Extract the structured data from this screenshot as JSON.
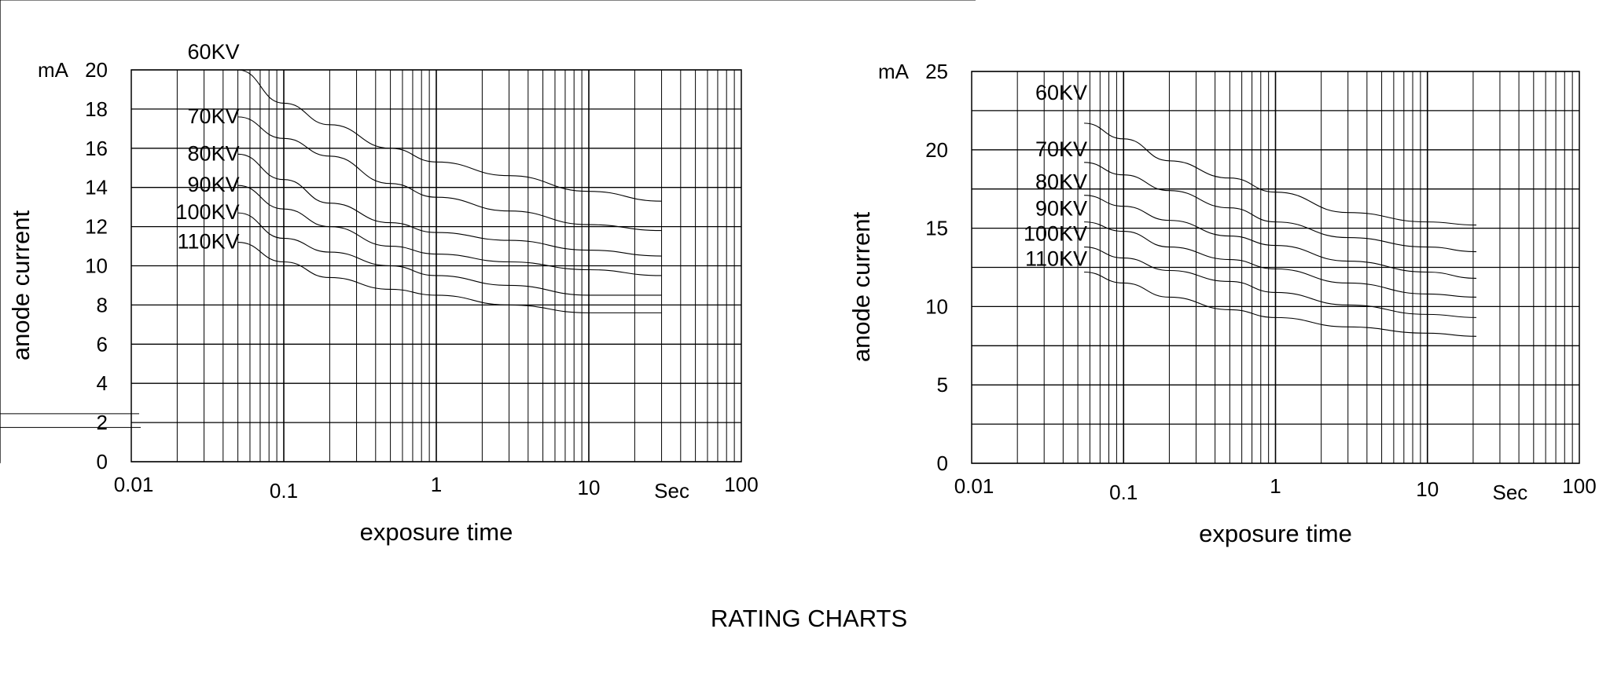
{
  "page_title": "RATING CHARTS",
  "chart_data": [
    {
      "type": "line",
      "xlabel": "exposure time",
      "ylabel": "anode current",
      "y_unit": "mA",
      "x_unit": "Sec",
      "x_scale": "log",
      "xlim": [
        0.01,
        100
      ],
      "ylim": [
        0,
        20
      ],
      "x_ticks": [
        "0.01",
        "0.1",
        "1",
        "10",
        "100"
      ],
      "y_ticks": [
        "0",
        "2",
        "4",
        "6",
        "8",
        "10",
        "12",
        "14",
        "16",
        "18",
        "20"
      ],
      "y_grid_step": 2,
      "grid": true,
      "legend_symbol": "two-parallel-lines",
      "x": [
        0.05,
        0.1,
        0.2,
        0.5,
        1,
        3,
        10,
        30
      ],
      "series": [
        {
          "name": "60KV",
          "values": [
            20.0,
            18.3,
            17.2,
            16.0,
            15.3,
            14.6,
            13.8,
            13.3
          ]
        },
        {
          "name": "70KV",
          "values": [
            17.6,
            16.5,
            15.6,
            14.2,
            13.5,
            12.8,
            12.1,
            11.8
          ]
        },
        {
          "name": "80KV",
          "values": [
            15.7,
            14.4,
            13.2,
            12.2,
            11.7,
            11.3,
            10.8,
            10.5
          ]
        },
        {
          "name": "90KV",
          "values": [
            14.1,
            12.9,
            12.0,
            11.0,
            10.6,
            10.2,
            9.8,
            9.5
          ]
        },
        {
          "name": "100KV",
          "values": [
            12.7,
            11.4,
            10.7,
            10.0,
            9.5,
            9.0,
            8.5,
            8.5
          ]
        },
        {
          "name": "110KV",
          "values": [
            11.2,
            10.2,
            9.4,
            8.8,
            8.5,
            8.0,
            7.6,
            7.6
          ]
        }
      ]
    },
    {
      "type": "line",
      "xlabel": "exposure time",
      "ylabel": "anode current",
      "y_unit": "mA",
      "x_unit": "Sec",
      "x_scale": "log",
      "xlim": [
        0.01,
        100
      ],
      "ylim": [
        0,
        25
      ],
      "x_ticks": [
        "0.01",
        "0.1",
        "1",
        "10",
        "100"
      ],
      "y_ticks": [
        "0",
        "5",
        "10",
        "15",
        "20",
        "25"
      ],
      "y_grid_step": 2.5,
      "grid": true,
      "legend_symbol": "sine-wave",
      "x": [
        0.055,
        0.1,
        0.2,
        0.5,
        1,
        3,
        10,
        21
      ],
      "series": [
        {
          "name": "60KV",
          "values": [
            21.7,
            20.7,
            19.3,
            18.2,
            17.3,
            16.0,
            15.4,
            15.2
          ]
        },
        {
          "name": "70KV",
          "values": [
            19.2,
            18.4,
            17.4,
            16.3,
            15.4,
            14.4,
            13.8,
            13.5
          ]
        },
        {
          "name": "80KV",
          "values": [
            17.1,
            16.4,
            15.5,
            14.5,
            13.9,
            12.9,
            12.2,
            11.8
          ]
        },
        {
          "name": "90KV",
          "values": [
            15.4,
            14.8,
            13.8,
            13.0,
            12.4,
            11.5,
            10.8,
            10.6
          ]
        },
        {
          "name": "100KV",
          "values": [
            13.8,
            13.1,
            12.3,
            11.6,
            10.9,
            10.1,
            9.5,
            9.3
          ]
        },
        {
          "name": "110KV",
          "values": [
            12.2,
            11.5,
            10.6,
            9.8,
            9.3,
            8.7,
            8.3,
            8.1
          ]
        }
      ]
    }
  ]
}
